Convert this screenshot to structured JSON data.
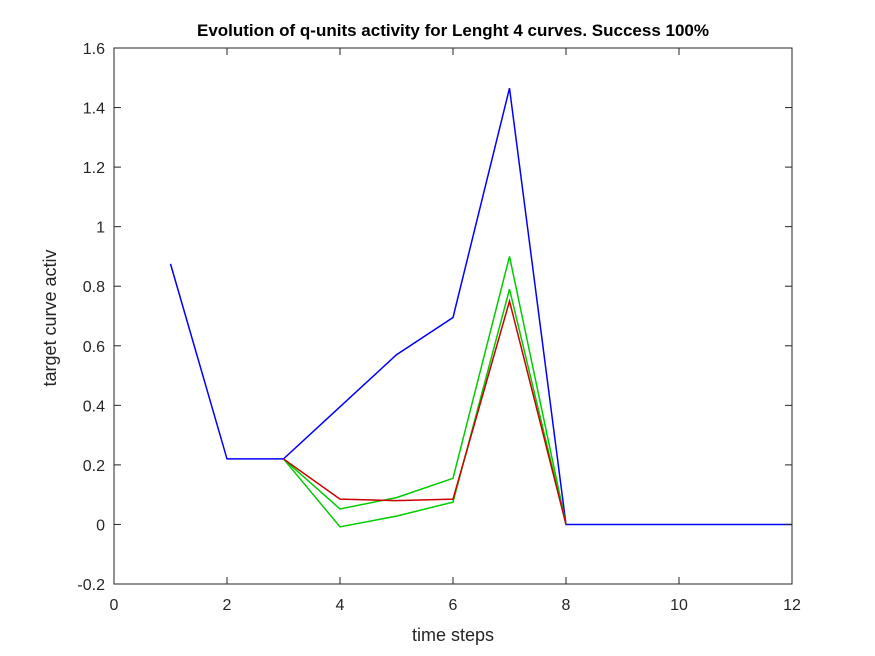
{
  "chart_data": {
    "type": "line",
    "title": "Evolution of q-units activity for Lenght 4 curves. Success 100%",
    "xlabel": "time steps",
    "ylabel": "target curve activ",
    "xlim": [
      0,
      12
    ],
    "ylim": [
      -0.2,
      1.6
    ],
    "xticks": [
      0,
      2,
      4,
      6,
      8,
      10,
      12
    ],
    "yticks": [
      -0.2,
      0,
      0.2,
      0.4,
      0.6,
      0.8,
      1,
      1.2,
      1.4,
      1.6
    ],
    "xtick_labels": [
      "0",
      "2",
      "4",
      "6",
      "8",
      "10",
      "12"
    ],
    "ytick_labels": [
      "-0.2",
      "0",
      "0.2",
      "0.4",
      "0.6",
      "0.8",
      "1",
      "1.2",
      "1.4",
      "1.6"
    ],
    "grid": false,
    "series": [
      {
        "color": "#0000ff",
        "x": [
          1,
          2,
          3,
          4,
          5,
          6,
          7,
          8,
          9,
          10,
          11,
          12
        ],
        "y": [
          0.875,
          0.22,
          0.22,
          0.395,
          0.57,
          0.695,
          1.465,
          0,
          0,
          0,
          0,
          0
        ]
      },
      {
        "color": "#00cc00",
        "x": [
          3,
          4,
          5,
          6,
          7,
          8
        ],
        "y": [
          0.22,
          0.052,
          0.09,
          0.155,
          0.9,
          0
        ]
      },
      {
        "color": "#00cc00",
        "x": [
          3,
          4,
          5,
          6,
          7,
          8
        ],
        "y": [
          0.22,
          -0.008,
          0.028,
          0.075,
          0.79,
          0
        ]
      },
      {
        "color": "#cc0000",
        "x": [
          3,
          4,
          5,
          6,
          7,
          8
        ],
        "y": [
          0.22,
          0.085,
          0.08,
          0.085,
          0.75,
          0
        ]
      }
    ]
  }
}
